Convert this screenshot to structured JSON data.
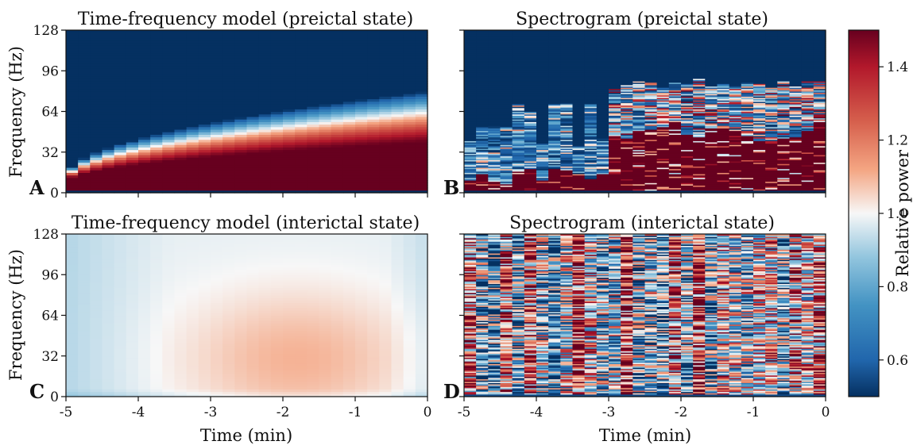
{
  "chart_data": {
    "type": "heatmap",
    "colormap": "RdBu_r",
    "panels": [
      {
        "id": "A",
        "title": "Time-frequency model (preictal state)",
        "kind": "model",
        "state": "preictal",
        "ylabel": "Frequency (Hz)",
        "xlabel": "",
        "xlim": [
          -5,
          0
        ],
        "ylim": [
          0,
          128
        ],
        "yticks": [
          "0",
          "32",
          "64",
          "96",
          "128"
        ]
      },
      {
        "id": "B",
        "title": "Spectrogram (preictal state)",
        "kind": "spectrogram",
        "state": "preictal",
        "ylabel": "",
        "xlabel": "",
        "xlim": [
          -5,
          0
        ],
        "ylim": [
          0,
          128
        ]
      },
      {
        "id": "C",
        "title": "Time-frequency model (interictal state)",
        "kind": "model",
        "state": "interictal",
        "ylabel": "Frequency (Hz)",
        "xlabel": "Time (min)",
        "xlim": [
          -5,
          0
        ],
        "ylim": [
          0,
          128
        ],
        "yticks": [
          "0",
          "32",
          "64",
          "96",
          "128"
        ],
        "xticks": [
          "-5",
          "-4",
          "-3",
          "-2",
          "-1",
          "0"
        ]
      },
      {
        "id": "D",
        "title": "Spectrogram (interictal state)",
        "kind": "spectrogram",
        "state": "interictal",
        "ylabel": "",
        "xlabel": "Time (min)",
        "xlim": [
          -5,
          0
        ],
        "ylim": [
          0,
          128
        ],
        "xticks": [
          "-5",
          "-4",
          "-3",
          "-2",
          "-1",
          "0"
        ]
      }
    ],
    "colorbar": {
      "label": "Relative power",
      "range": [
        0.5,
        1.5
      ],
      "ticks": [
        "0.6",
        "0.8",
        "1.0",
        "1.2",
        "1.4"
      ],
      "tick_values": [
        0.6,
        0.8,
        1.0,
        1.2,
        1.4
      ]
    },
    "model_preictal": {
      "description_values": "high-frequency band edge rises with time",
      "edge_hz_at_start": 12,
      "edge_hz_at_end": 80,
      "dark_red_edge_hz_at_end": 40
    },
    "model_interictal": {
      "peak_value": 1.1,
      "peak_time_min": -1.8,
      "peak_freq_hz": 30
    }
  }
}
